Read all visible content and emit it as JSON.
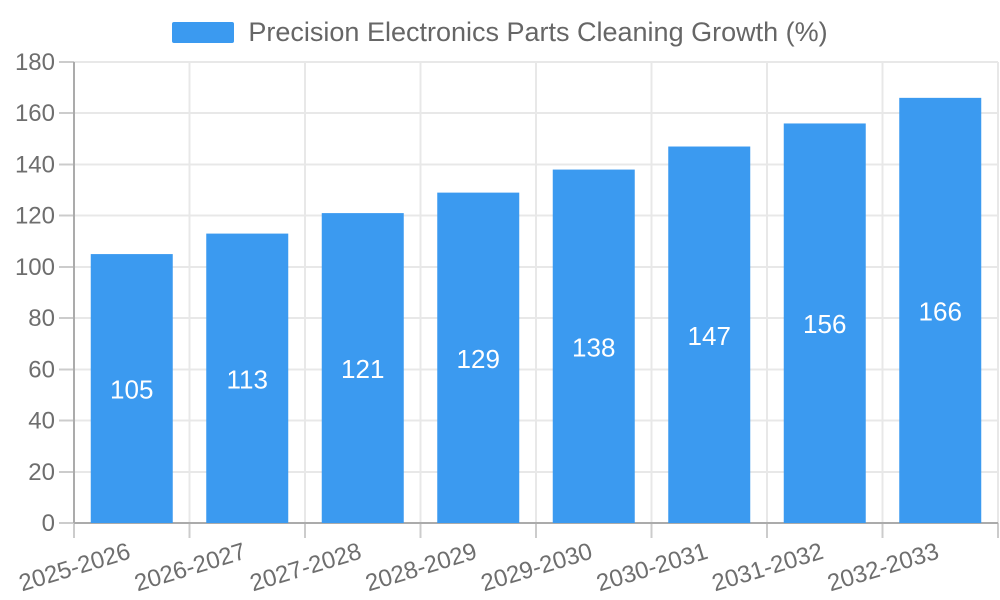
{
  "legend": {
    "label": "Precision Electronics Parts Cleaning Growth (%)",
    "swatch_color": "#3B9AF0"
  },
  "chart_data": {
    "type": "bar",
    "title": "Precision Electronics Parts Cleaning Growth (%)",
    "categories": [
      "2025-2026",
      "2026-2027",
      "2027-2028",
      "2028-2029",
      "2029-2030",
      "2030-2031",
      "2031-2032",
      "2032-2033"
    ],
    "values": [
      105,
      113,
      121,
      129,
      138,
      147,
      156,
      166
    ],
    "xlabel": "",
    "ylabel": "",
    "ylim": [
      0,
      180
    ],
    "ytick_step": 20,
    "y_tick_labels": [
      "0",
      "20",
      "40",
      "60",
      "80",
      "100",
      "120",
      "140",
      "160",
      "180"
    ],
    "grid": true,
    "legend_position": "top-center",
    "x_label_rotation_deg": -17,
    "value_labels_inside_bars": true,
    "colors": {
      "bar": "#3B9AF0",
      "gridline": "#E8E8E8",
      "axis_line": "#ABABAB",
      "tick": "#CCCCCC",
      "axis_label": "#6E6E6E",
      "value_label": "#FFFFFF",
      "legend_text": "#666666"
    }
  }
}
